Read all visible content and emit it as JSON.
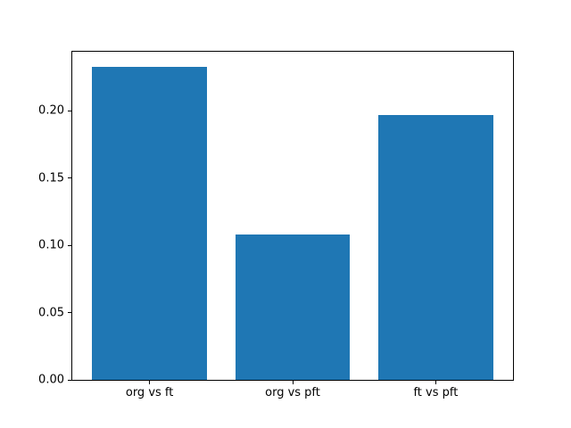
{
  "chart_data": {
    "type": "bar",
    "categories": [
      "org vs ft",
      "org vs pft",
      "ft vs pft"
    ],
    "values": [
      0.233,
      0.108,
      0.197
    ],
    "title": "",
    "xlabel": "",
    "ylabel": "",
    "ylim": [
      0,
      0.244
    ],
    "xlim": [
      -0.54,
      2.54
    ],
    "yticks": [
      0.0,
      0.05,
      0.1,
      0.15,
      0.2
    ],
    "ytick_format_decimals": 2,
    "bar_color": "#1f77b4",
    "bar_width_fraction": 0.8,
    "axis_color": "#000000",
    "background_color": "#ffffff",
    "grid": false,
    "legend": null
  }
}
